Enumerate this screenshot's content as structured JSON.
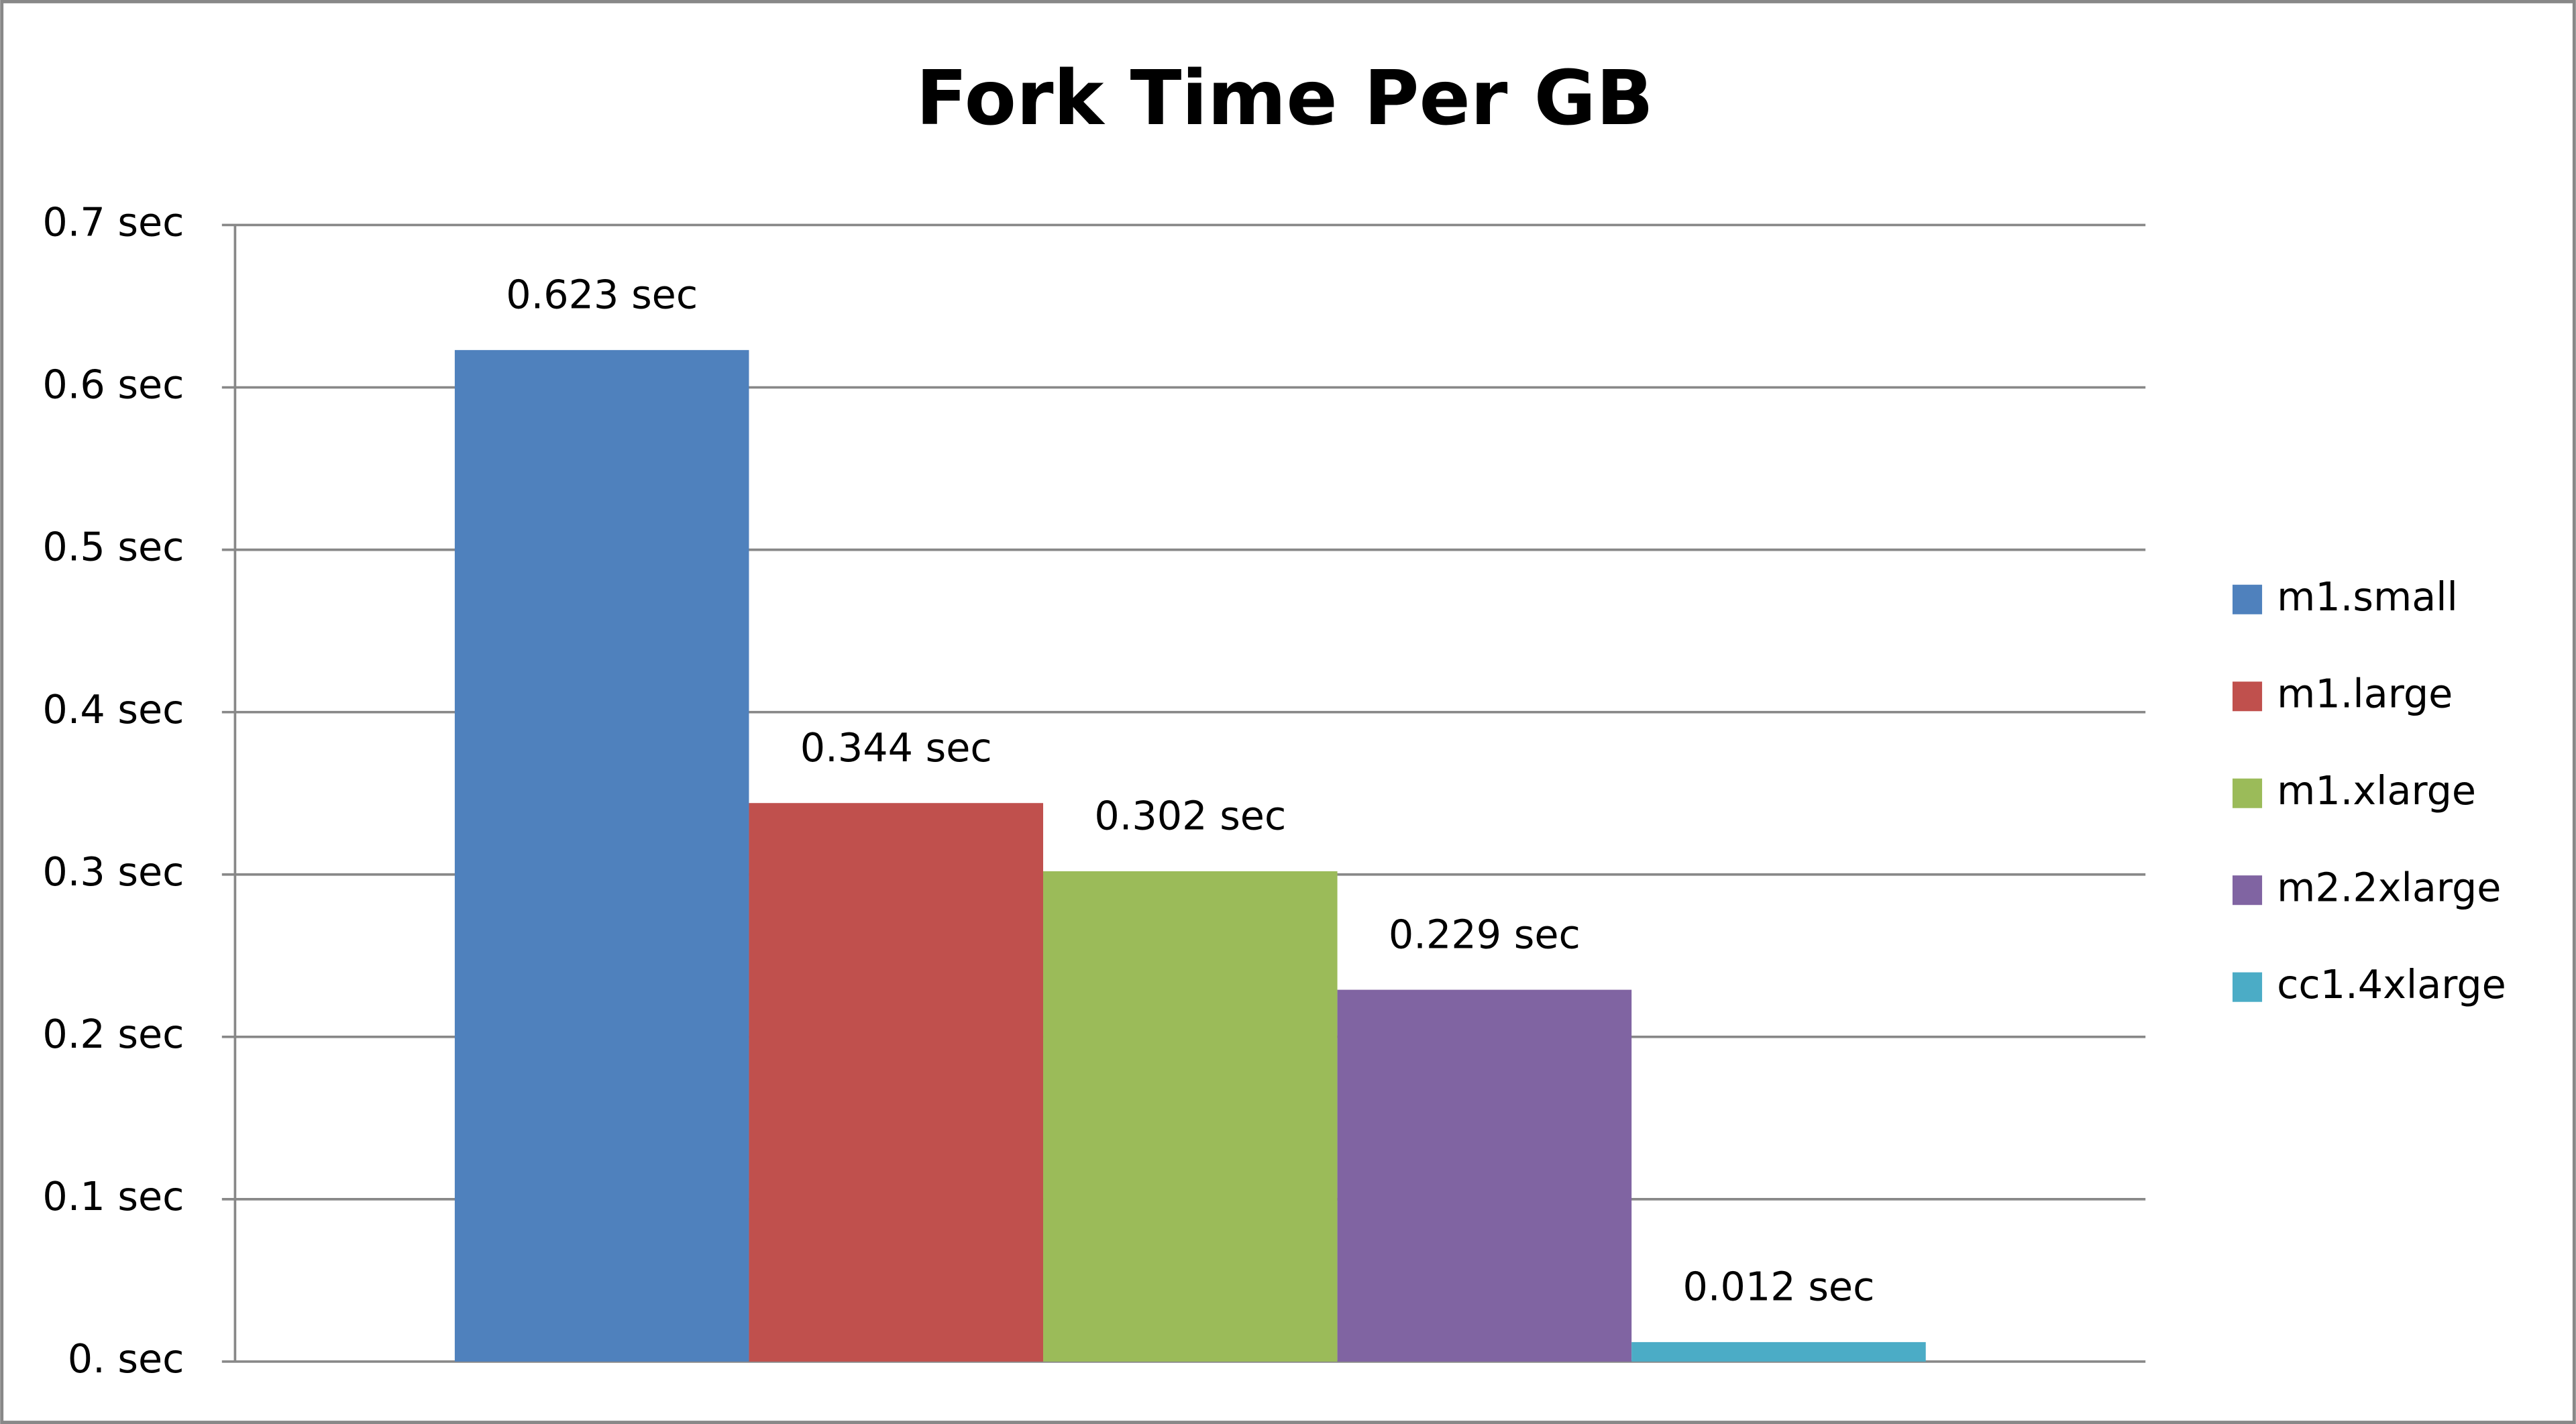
{
  "chart_data": {
    "type": "bar",
    "title": "Fork Time Per GB",
    "categories": [
      null
    ],
    "series": [
      {
        "name": "m1.small",
        "color": "#4f81bd",
        "values": [
          0.623
        ],
        "value_labels": [
          "0.623 sec"
        ]
      },
      {
        "name": "m1.large",
        "color": "#c0504d",
        "values": [
          0.344
        ],
        "value_labels": [
          "0.344 sec"
        ]
      },
      {
        "name": "m1.xlarge",
        "color": "#9bbb59",
        "values": [
          0.302
        ],
        "value_labels": [
          "0.302 sec"
        ]
      },
      {
        "name": "m2.2xlarge",
        "color": "#8064a2",
        "values": [
          0.229
        ],
        "value_labels": [
          "0.229 sec"
        ]
      },
      {
        "name": "cc1.4xlarge",
        "color": "#4bacc6",
        "values": [
          0.012
        ],
        "value_labels": [
          "0.012 sec"
        ]
      }
    ],
    "ylim": [
      0,
      0.7
    ],
    "yticks": [
      {
        "value": 0,
        "label": "0. sec"
      },
      {
        "value": 0.1,
        "label": "0.1 sec"
      },
      {
        "value": 0.2,
        "label": "0.2 sec"
      },
      {
        "value": 0.3,
        "label": "0.3 sec"
      },
      {
        "value": 0.4,
        "label": "0.4 sec"
      },
      {
        "value": 0.5,
        "label": "0.5 sec"
      },
      {
        "value": 0.6,
        "label": "0.6 sec"
      },
      {
        "value": 0.7,
        "label": "0.7 sec"
      }
    ],
    "grid": true,
    "legend": "right"
  }
}
